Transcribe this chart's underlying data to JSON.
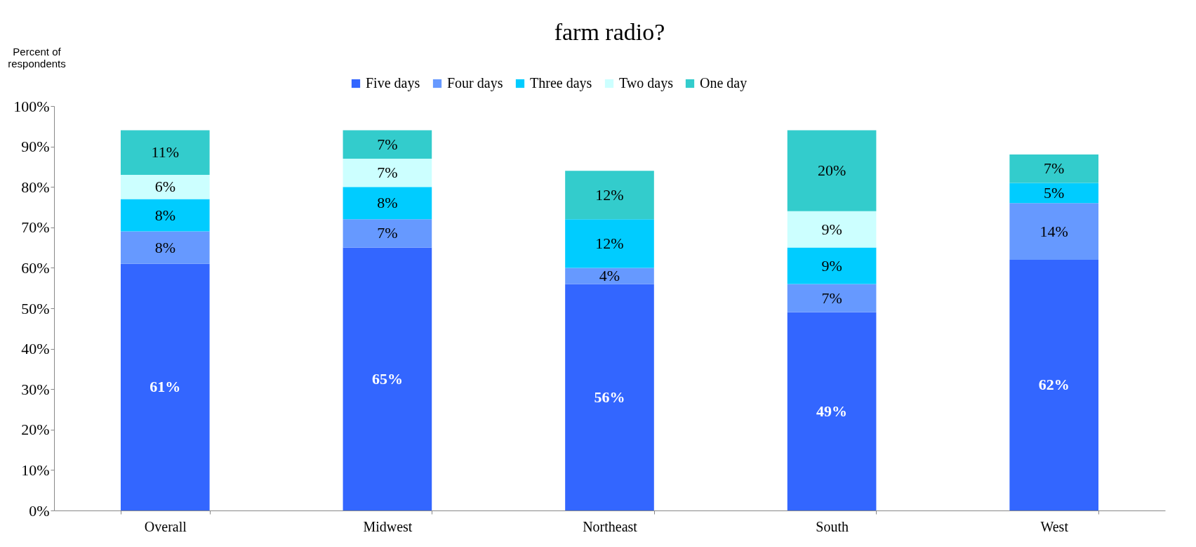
{
  "chart_data": {
    "type": "bar",
    "stacked": true,
    "title": "farm radio?",
    "ylabel": "Percent of respondents",
    "categories": [
      "Overall",
      "Midwest",
      "Northeast",
      "South",
      "West"
    ],
    "series": [
      {
        "name": "Five days",
        "color": "#3366ff",
        "values": [
          61,
          65,
          56,
          49,
          62
        ],
        "value_labels": [
          "61%",
          "65%",
          "56%",
          "49%",
          "62%"
        ]
      },
      {
        "name": "Four days",
        "color": "#6699ff",
        "values": [
          8,
          7,
          4,
          7,
          14
        ],
        "value_labels": [
          "8%",
          "7%",
          "4%",
          "7%",
          "14%"
        ]
      },
      {
        "name": "Three days",
        "color": "#00ccff",
        "values": [
          8,
          8,
          12,
          9,
          5
        ],
        "value_labels": [
          "8%",
          "8%",
          "12%",
          "9%",
          "5%"
        ]
      },
      {
        "name": "Two days",
        "color": "#ccffff",
        "values": [
          6,
          7,
          null,
          9,
          null
        ],
        "value_labels": [
          "6%",
          "7%",
          null,
          "9%",
          null
        ]
      },
      {
        "name": "One day",
        "color": "#33cccc",
        "values": [
          11,
          7,
          12,
          20,
          7
        ],
        "value_labels": [
          "11%",
          "7%",
          "12%",
          "20%",
          "7%"
        ]
      }
    ],
    "ylim": [
      0,
      100
    ],
    "yticks": [
      {
        "value": 0,
        "label": "0%"
      },
      {
        "value": 10,
        "label": "10%"
      },
      {
        "value": 20,
        "label": "20%"
      },
      {
        "value": 30,
        "label": "30%"
      },
      {
        "value": 40,
        "label": "40%"
      },
      {
        "value": 50,
        "label": "50%"
      },
      {
        "value": 60,
        "label": "60%"
      },
      {
        "value": 70,
        "label": "70%"
      },
      {
        "value": 80,
        "label": "80%"
      },
      {
        "value": 90,
        "label": "90%"
      },
      {
        "value": 100,
        "label": "100%"
      }
    ],
    "legend": "top",
    "grid": false
  }
}
